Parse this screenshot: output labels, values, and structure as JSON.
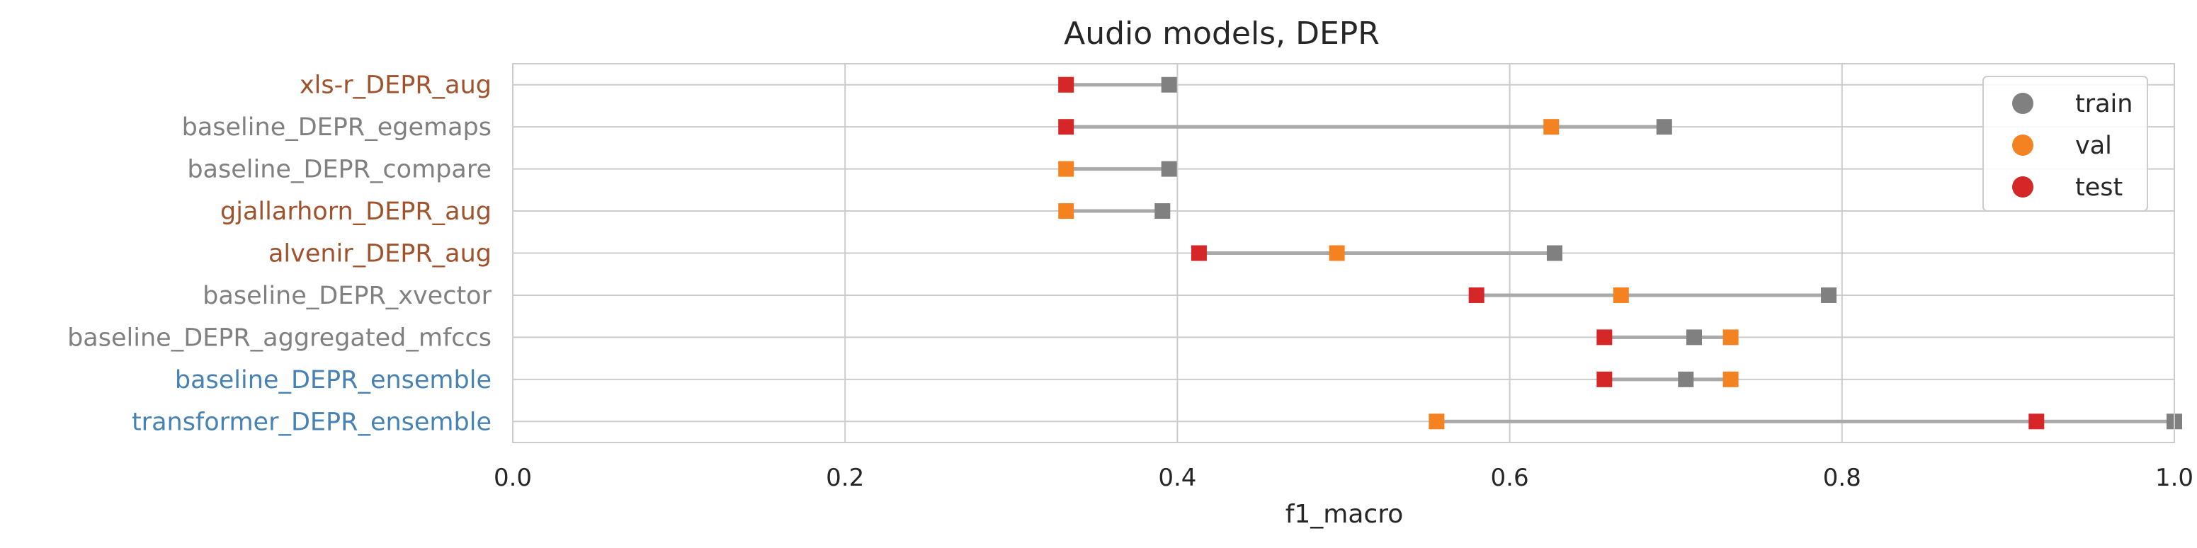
{
  "chart_data": {
    "type": "scatter",
    "title": "Audio models, DEPR",
    "xlabel": "f1_macro",
    "ylabel": "",
    "xlim": [
      0.0,
      1.0
    ],
    "xticks": [
      "0.0",
      "0.2",
      "0.4",
      "0.6",
      "0.8",
      "1.0"
    ],
    "grid": true,
    "legend_position": "top-right",
    "categories": [
      "xls-r_DEPR_aug",
      "baseline_DEPR_egemaps",
      "baseline_DEPR_compare",
      "gjallarhorn_DEPR_aug",
      "alvenir_DEPR_aug",
      "baseline_DEPR_xvector",
      "baseline_DEPR_aggregated_mfccs",
      "baseline_DEPR_ensemble",
      "transformer_DEPR_ensemble"
    ],
    "category_colors": [
      "#a0522d",
      "#808080",
      "#808080",
      "#a0522d",
      "#a0522d",
      "#808080",
      "#808080",
      "#4682b4",
      "#4682b4"
    ],
    "series": [
      {
        "name": "train",
        "color": "#808080",
        "values": [
          0.395,
          0.693,
          0.395,
          0.391,
          0.627,
          0.792,
          0.711,
          0.706,
          1.0
        ]
      },
      {
        "name": "val",
        "color": "#f58220",
        "values": [
          0.333,
          0.625,
          0.333,
          0.333,
          0.496,
          0.667,
          0.733,
          0.733,
          0.556
        ]
      },
      {
        "name": "test",
        "color": "#d62728",
        "values": [
          0.333,
          0.333,
          null,
          null,
          0.413,
          0.58,
          0.657,
          0.657,
          0.917
        ]
      }
    ],
    "range_line_color": "#a9a9a9"
  }
}
